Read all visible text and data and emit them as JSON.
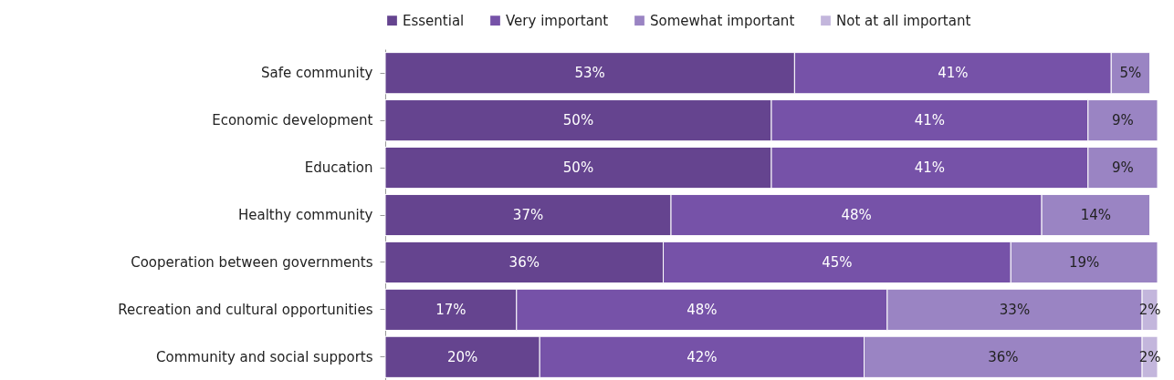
{
  "chart_data": {
    "type": "bar",
    "orientation": "horizontal",
    "stacked": true,
    "legend": "top",
    "tick_labels": "y",
    "categories": [
      "Safe community",
      "Economic development",
      "Education",
      "Healthy community",
      "Cooperation between governments",
      "Recreation and cultural opportunities",
      "Community and social supports"
    ],
    "series": [
      {
        "name": "Essential",
        "color": "#65448f",
        "values": [
          53,
          50,
          50,
          37,
          36,
          17,
          20
        ],
        "value_labels": [
          "53%",
          "50%",
          "50%",
          "37%",
          "36%",
          "17%",
          "20%"
        ]
      },
      {
        "name": "Very important",
        "color": "#7652a8",
        "values": [
          41,
          41,
          41,
          48,
          45,
          48,
          42
        ],
        "value_labels": [
          "41%",
          "41%",
          "41%",
          "48%",
          "45%",
          "48%",
          "42%"
        ]
      },
      {
        "name": "Somewhat important",
        "color": "#9a84c3",
        "values": [
          5,
          9,
          9,
          14,
          19,
          33,
          36
        ],
        "value_labels": [
          "5%",
          "9%",
          "9%",
          "14%",
          "19%",
          "33%",
          "36%"
        ]
      },
      {
        "name": "Not at all important",
        "color": "#c3b6dc",
        "values": [
          null,
          null,
          null,
          null,
          null,
          2,
          2
        ],
        "value_labels": [
          null,
          null,
          null,
          null,
          null,
          "2%",
          "2%"
        ]
      }
    ]
  }
}
